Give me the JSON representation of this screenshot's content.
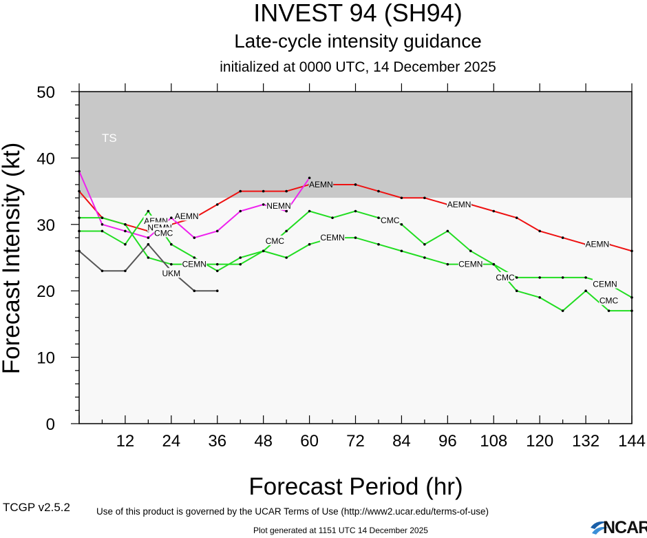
{
  "header": {
    "storm": "INVEST 94 (SH94)",
    "product": "Late-cycle intensity guidance",
    "init": "initialized at 0000 UTC, 14 December 2025"
  },
  "footer": {
    "version": "TCGP v2.5.2",
    "terms": "Use of this product is governed by the UCAR Terms of Use (http://www2.ucar.edu/terms-of-use)",
    "generated": "Plot generated at 1151 UTC   14 December 2025",
    "logo": "NCAR"
  },
  "chart_data": {
    "type": "line",
    "xlabel": "Forecast Period (hr)",
    "ylabel": "Forecast Intensity (kt)",
    "xlim": [
      0,
      144
    ],
    "ylim": [
      0,
      50
    ],
    "xticks": [
      12,
      24,
      36,
      48,
      60,
      72,
      84,
      96,
      108,
      120,
      132,
      144
    ],
    "yticks": [
      0,
      10,
      20,
      30,
      40,
      50
    ],
    "bands": [
      {
        "name": "TS",
        "from": 34,
        "to": 50,
        "color": "#c8c8c8"
      },
      {
        "name": "",
        "from": 0,
        "to": 34,
        "color": "#f8f8f8"
      }
    ],
    "series": [
      {
        "name": "AEMN",
        "color": "#ee1111",
        "x": [
          0,
          6,
          12,
          18,
          24,
          30,
          36,
          42,
          48,
          54,
          60,
          66,
          72,
          78,
          84,
          90,
          96,
          102,
          108,
          114,
          120,
          126,
          132,
          138,
          144
        ],
        "y": [
          35,
          31,
          30,
          29,
          30,
          31,
          33,
          35,
          35,
          35,
          36,
          36,
          36,
          35,
          34,
          34,
          33,
          33,
          32,
          31,
          29,
          28,
          27,
          27,
          26
        ],
        "labels": [
          {
            "x": 20,
            "y": 30.5
          },
          {
            "x": 28,
            "y": 31.2
          },
          {
            "x": 63,
            "y": 36
          },
          {
            "x": 99,
            "y": 33
          },
          {
            "x": 135,
            "y": 27
          }
        ]
      },
      {
        "name": "NEMN",
        "color": "#ee22ee",
        "x": [
          0,
          6,
          12,
          18,
          24,
          30,
          36,
          42,
          48,
          54,
          60
        ],
        "y": [
          38,
          30,
          29,
          28,
          31,
          28,
          29,
          32,
          33,
          32,
          37
        ],
        "labels": [
          {
            "x": 21,
            "y": 29.5
          },
          {
            "x": 52,
            "y": 32.8
          }
        ]
      },
      {
        "name": "CEMN",
        "color": "#22dd22",
        "x": [
          0,
          6,
          12,
          18,
          24,
          30,
          36,
          42,
          48,
          54,
          60,
          66,
          72,
          78,
          84,
          90,
          96,
          102,
          108,
          114,
          120,
          126,
          132,
          138,
          144
        ],
        "y": [
          31,
          31,
          30,
          25,
          24,
          24,
          24,
          24,
          26,
          25,
          27,
          28,
          28,
          27,
          26,
          25,
          24,
          24,
          24,
          22,
          22,
          22,
          22,
          21,
          19
        ],
        "labels": [
          {
            "x": 30,
            "y": 24
          },
          {
            "x": 66,
            "y": 28
          },
          {
            "x": 102,
            "y": 24
          },
          {
            "x": 137,
            "y": 21
          }
        ]
      },
      {
        "name": "CMC",
        "color": "#22dd22",
        "x": [
          0,
          6,
          12,
          18,
          24,
          30,
          36,
          42,
          48,
          54,
          60,
          66,
          72,
          78,
          84,
          90,
          96,
          102,
          108,
          114,
          120,
          126,
          132,
          138,
          144
        ],
        "y": [
          29,
          29,
          27,
          32,
          27,
          25,
          23,
          25,
          26,
          29,
          32,
          31,
          32,
          31,
          30,
          27,
          29,
          26,
          24,
          20,
          19,
          17,
          20,
          17,
          17
        ],
        "labels": [
          {
            "x": 22,
            "y": 28.7
          },
          {
            "x": 51,
            "y": 27.5
          },
          {
            "x": 81,
            "y": 30.6
          },
          {
            "x": 111,
            "y": 22
          },
          {
            "x": 138,
            "y": 18.5
          }
        ]
      },
      {
        "name": "UKM",
        "color": "#555555",
        "x": [
          0,
          6,
          12,
          18,
          24,
          30,
          36
        ],
        "y": [
          26,
          23,
          23,
          27,
          23,
          20,
          20
        ],
        "labels": [
          {
            "x": 24,
            "y": 22.6
          }
        ]
      }
    ],
    "extra_points": [
      {
        "x": 54,
        "y": 32,
        "color": "#000000"
      }
    ]
  }
}
